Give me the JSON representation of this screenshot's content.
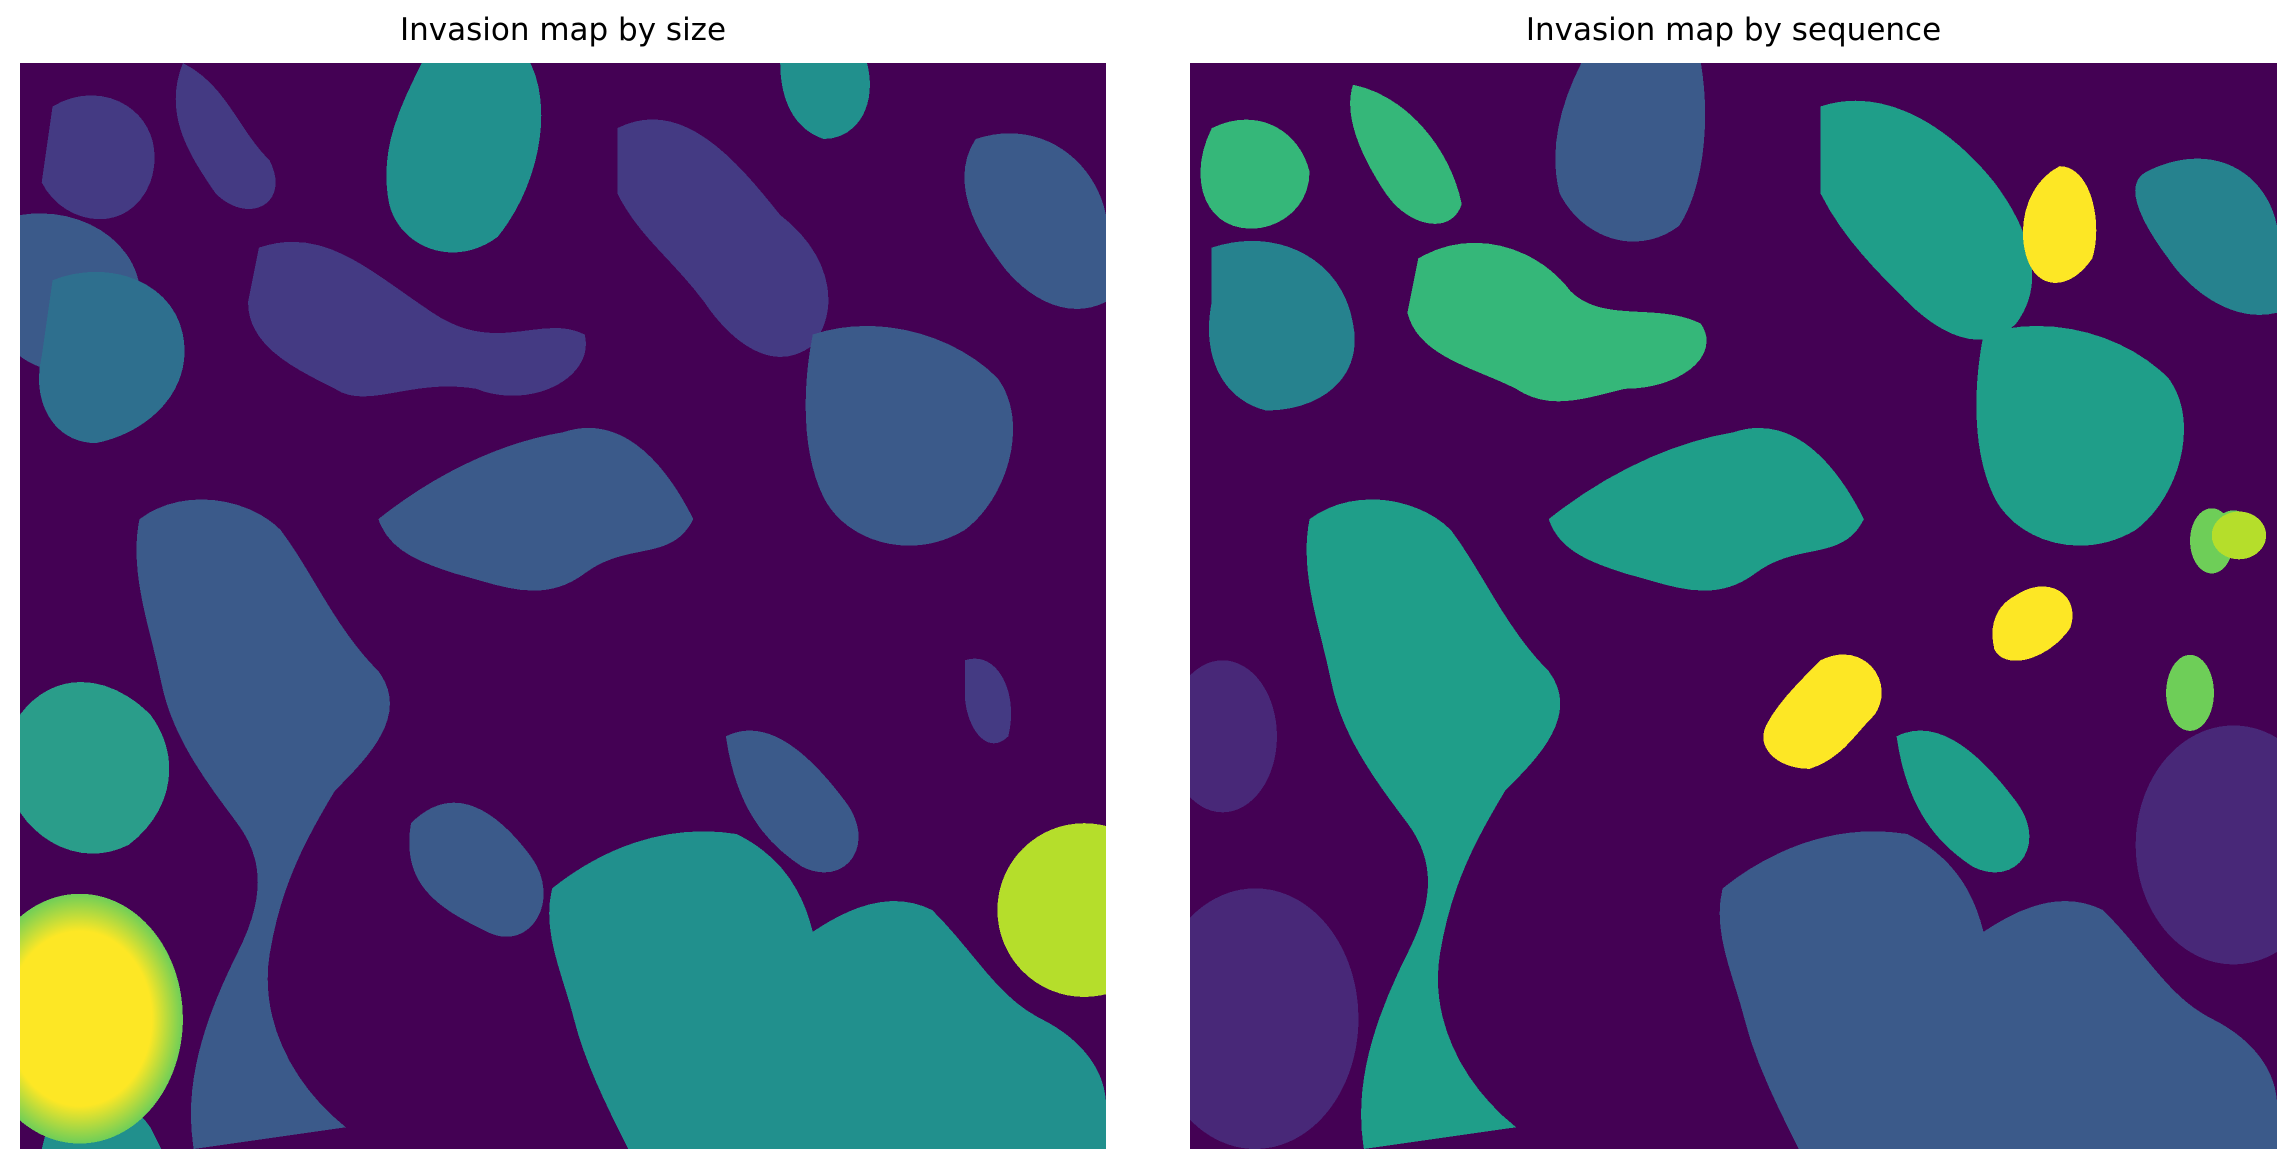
{
  "figure": {
    "left_panel": {
      "title": "Invasion map by size"
    },
    "right_panel": {
      "title": "Invasion map by sequence"
    }
  },
  "colors": {
    "background": "#440154",
    "colormap": "viridis",
    "viridis_stops": [
      "#440154",
      "#482878",
      "#3e4989",
      "#31688e",
      "#26828e",
      "#1f9e89",
      "#35b779",
      "#6ece58",
      "#b5de2b",
      "#fde725"
    ]
  }
}
